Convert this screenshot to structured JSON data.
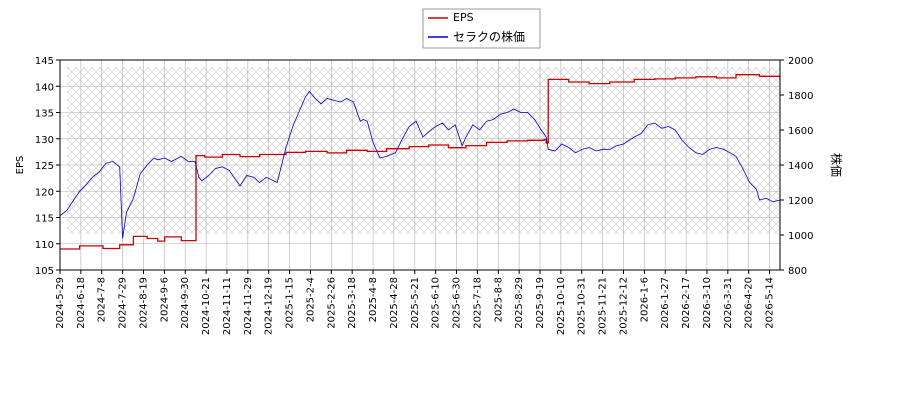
{
  "chart_data": {
    "type": "line",
    "legend": {
      "placement": "top-center",
      "entries": [
        {
          "label": "EPS",
          "color": "#cc0000"
        },
        {
          "label": "セラクの株価",
          "color": "#0000cc"
        }
      ]
    },
    "left_axis": {
      "label": "EPS",
      "ylim": [
        105,
        145
      ],
      "ticks": [
        105,
        110,
        115,
        120,
        125,
        130,
        135,
        140,
        145
      ]
    },
    "right_axis": {
      "label": "株価",
      "ylim": [
        800,
        2000
      ],
      "ticks": [
        800,
        1000,
        1200,
        1400,
        1600,
        1800,
        2000
      ]
    },
    "x_axis": {
      "range": [
        "2024-05-29",
        "2026-06-04"
      ],
      "tick_labels": [
        "2024-5-29",
        "2024-6-18",
        "2024-7-8",
        "2024-7-29",
        "2024-8-19",
        "2024-9-6",
        "2024-9-30",
        "2024-10-21",
        "2024-11-11",
        "2024-11-29",
        "2024-12-19",
        "2025-1-15",
        "2025-2-4",
        "2025-2-26",
        "2025-3-18",
        "2025-4-8",
        "2025-4-28",
        "2025-5-21",
        "2025-6-10",
        "2025-6-30",
        "2025-7-18",
        "2025-8-8",
        "2025-8-29",
        "2025-9-19",
        "2025-10-10",
        "2025-10-31",
        "2025-11-21",
        "2025-12-12",
        "2026-1-6",
        "2026-1-27",
        "2026-2-17",
        "2026-3-10",
        "2026-3-31",
        "2026-4-20",
        "2026-5-14"
      ]
    },
    "grid": true,
    "series": [
      {
        "name": "EPS",
        "axis": "left",
        "color": "#cc0000",
        "x": [
          "2024-05-29",
          "2024-06-14",
          "2024-06-18",
          "2024-07-01",
          "2024-07-12",
          "2024-07-17",
          "2024-07-29",
          "2024-08-12",
          "2024-08-26",
          "2024-09-06",
          "2024-09-13",
          "2024-09-30",
          "2024-10-14",
          "2024-10-15",
          "2024-10-24",
          "2024-11-11",
          "2024-11-29",
          "2024-12-19",
          "2025-01-15",
          "2025-02-04",
          "2025-02-26",
          "2025-03-18",
          "2025-04-08",
          "2025-04-28",
          "2025-05-21",
          "2025-06-10",
          "2025-06-30",
          "2025-07-18",
          "2025-08-08",
          "2025-08-29",
          "2025-09-19",
          "2025-10-06",
          "2025-10-08",
          "2025-10-10",
          "2025-10-20",
          "2025-10-31",
          "2025-11-21",
          "2025-12-12",
          "2026-01-06",
          "2026-01-27",
          "2026-02-17",
          "2026-03-10",
          "2026-03-31",
          "2026-04-20",
          "2026-05-14",
          "2026-06-01",
          "2026-06-04"
        ],
        "values": [
          109.0,
          109.0,
          109.6,
          109.6,
          109.1,
          109.1,
          109.8,
          111.4,
          111.0,
          110.5,
          111.3,
          110.6,
          110.6,
          126.8,
          126.5,
          127.0,
          126.6,
          127.0,
          127.4,
          127.6,
          127.3,
          127.8,
          127.6,
          128.1,
          128.5,
          128.8,
          128.3,
          128.7,
          129.3,
          129.6,
          129.7,
          129.9,
          129.2,
          141.3,
          141.3,
          140.8,
          140.5,
          140.8,
          141.3,
          141.4,
          141.6,
          141.8,
          141.6,
          142.2,
          141.9,
          141.9,
          141.2
        ]
      },
      {
        "name": "セラクの株価",
        "axis": "right",
        "color": "#0000cc",
        "x": [
          "2024-05-29",
          "2024-06-05",
          "2024-06-12",
          "2024-06-18",
          "2024-06-25",
          "2024-07-01",
          "2024-07-08",
          "2024-07-15",
          "2024-07-22",
          "2024-07-29",
          "2024-08-01",
          "2024-08-05",
          "2024-08-12",
          "2024-08-19",
          "2024-08-26",
          "2024-09-02",
          "2024-09-06",
          "2024-09-13",
          "2024-09-20",
          "2024-09-30",
          "2024-10-07",
          "2024-10-14",
          "2024-10-18",
          "2024-10-21",
          "2024-10-28",
          "2024-11-04",
          "2024-11-11",
          "2024-11-18",
          "2024-11-29",
          "2024-12-06",
          "2024-12-13",
          "2024-12-19",
          "2024-12-26",
          "2025-01-06",
          "2025-01-15",
          "2025-01-22",
          "2025-01-28",
          "2025-02-04",
          "2025-02-08",
          "2025-02-14",
          "2025-02-20",
          "2025-02-26",
          "2025-03-05",
          "2025-03-12",
          "2025-03-18",
          "2025-03-25",
          "2025-04-01",
          "2025-04-04",
          "2025-04-08",
          "2025-04-14",
          "2025-04-21",
          "2025-04-28",
          "2025-05-07",
          "2025-05-14",
          "2025-05-21",
          "2025-05-28",
          "2025-06-04",
          "2025-06-10",
          "2025-06-17",
          "2025-06-24",
          "2025-06-30",
          "2025-07-07",
          "2025-07-14",
          "2025-07-18",
          "2025-07-25",
          "2025-08-01",
          "2025-08-08",
          "2025-08-15",
          "2025-08-22",
          "2025-08-29",
          "2025-09-05",
          "2025-09-12",
          "2025-09-19",
          "2025-09-26",
          "2025-10-03",
          "2025-10-08",
          "2025-10-10",
          "2025-10-17",
          "2025-10-24",
          "2025-10-31",
          "2025-11-07",
          "2025-11-14",
          "2025-11-21",
          "2025-11-28",
          "2025-12-05",
          "2025-12-12",
          "2025-12-19",
          "2025-12-26",
          "2026-01-06",
          "2026-01-13",
          "2026-01-20",
          "2026-01-27",
          "2026-02-03",
          "2026-02-10",
          "2026-02-17",
          "2026-02-24",
          "2026-03-03",
          "2026-03-10",
          "2026-03-17",
          "2026-03-24",
          "2026-03-31",
          "2026-04-07",
          "2026-04-14",
          "2026-04-20",
          "2026-04-27",
          "2026-05-04",
          "2026-05-11",
          "2026-05-14",
          "2026-05-21",
          "2026-05-28",
          "2026-06-04"
        ],
        "values": [
          1110,
          1140,
          1200,
          1250,
          1290,
          1330,
          1360,
          1410,
          1420,
          1390,
          980,
          1130,
          1210,
          1350,
          1400,
          1440,
          1430,
          1440,
          1420,
          1450,
          1420,
          1420,
          1330,
          1310,
          1340,
          1380,
          1390,
          1370,
          1280,
          1340,
          1330,
          1300,
          1330,
          1300,
          1500,
          1620,
          1700,
          1790,
          1820,
          1780,
          1750,
          1780,
          1770,
          1760,
          1780,
          1760,
          1650,
          1660,
          1650,
          1530,
          1440,
          1450,
          1470,
          1550,
          1620,
          1650,
          1560,
          1590,
          1620,
          1640,
          1600,
          1630,
          1510,
          1560,
          1630,
          1600,
          1650,
          1660,
          1690,
          1700,
          1720,
          1700,
          1700,
          1660,
          1600,
          1560,
          1490,
          1480,
          1520,
          1500,
          1470,
          1490,
          1500,
          1480,
          1490,
          1490,
          1510,
          1520,
          1560,
          1580,
          1630,
          1640,
          1610,
          1620,
          1600,
          1540,
          1500,
          1470,
          1460,
          1490,
          1500,
          1490,
          1470,
          1450,
          1380,
          1300,
          1260,
          1200,
          1210,
          1190,
          1200
        ]
      }
    ]
  }
}
